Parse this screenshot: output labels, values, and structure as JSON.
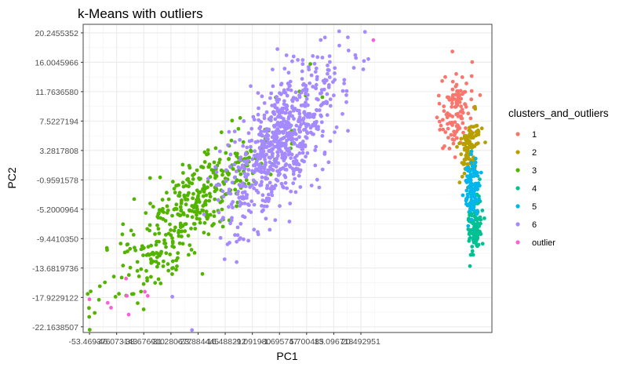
{
  "chart_data": {
    "type": "scatter",
    "title": "k-Means with outliers",
    "xlabel": "PC1",
    "ylabel": "PC2",
    "xlim": [
      -55.2,
      56.2
    ],
    "ylim": [
      -22.98,
      21.48
    ],
    "grid": true,
    "legend_position": "right",
    "legend_title": "clusters_and_outliers",
    "x_ticks": [
      "-53.469376",
      "-46.073143",
      "-38.676910",
      "-31.280677",
      "-23.884445",
      "-16.488212",
      "-9.091980",
      "-1.695747",
      "5.700485",
      "13.096718",
      "20.492951"
    ],
    "x_tick_values": [
      -53.469376,
      -46.073143,
      -38.67691,
      -31.280677,
      -23.884445,
      -16.488212,
      -9.09198,
      -1.695747,
      5.700485,
      13.096718,
      20.492951
    ],
    "y_ticks": [
      "20.2455352",
      "16.0045966",
      "11.7636580",
      "7.5227194",
      "3.2817808",
      "-0.9591578",
      "-5.2000964",
      "-9.4410350",
      "-13.6819736",
      "-17.9229122",
      "-22.1638507"
    ],
    "y_tick_values": [
      20.2455352,
      16.0045966,
      11.763658,
      7.5227194,
      3.2817808,
      -0.9591578,
      -5.2000964,
      -9.441035,
      -13.6819736,
      -17.9229122,
      -22.1638507
    ],
    "series": [
      {
        "name": "1",
        "color": "#F8766D",
        "cluster": {
          "n": 110,
          "center": [
            46.2,
            9.4
          ],
          "spread": [
            2.2,
            3.2
          ],
          "rotation_deg": -35
        }
      },
      {
        "name": "2",
        "color": "#B79F00",
        "cluster": {
          "n": 110,
          "center": [
            50.2,
            3.8
          ],
          "spread": [
            1.2,
            2.2
          ],
          "rotation_deg": -15
        }
      },
      {
        "name": "3",
        "color": "#53B400",
        "cluster": {
          "n": 420,
          "center": [
            -25.0,
            -4.6
          ],
          "spread": [
            13.0,
            3.0
          ],
          "rotation_deg": 28
        }
      },
      {
        "name": "4",
        "color": "#00C094",
        "cluster": {
          "n": 110,
          "center": [
            51.6,
            -7.2
          ],
          "spread": [
            0.9,
            2.5
          ],
          "rotation_deg": 0
        }
      },
      {
        "name": "5",
        "color": "#00B6EB",
        "cluster": {
          "n": 120,
          "center": [
            50.8,
            -2.0
          ],
          "spread": [
            1.1,
            2.0
          ],
          "rotation_deg": 0
        }
      },
      {
        "name": "6",
        "color": "#A58AFF",
        "cluster": {
          "n": 720,
          "center": [
            -1.0,
            4.6
          ],
          "spread": [
            9.0,
            3.6
          ],
          "rotation_deg": 32
        }
      },
      {
        "name": "outlier",
        "color": "#FB61D7",
        "points": [
          [
            -53.5,
            -18.2
          ],
          [
            -48.5,
            -18.7
          ],
          [
            -47.6,
            -19.4
          ],
          [
            -42.8,
            -20.4
          ],
          [
            -43.3,
            -17.7
          ],
          [
            -43.5,
            -15.2
          ],
          [
            -37.6,
            -17.7
          ],
          [
            -38.4,
            -17.1
          ],
          [
            23.9,
            19.2
          ]
        ]
      }
    ]
  }
}
